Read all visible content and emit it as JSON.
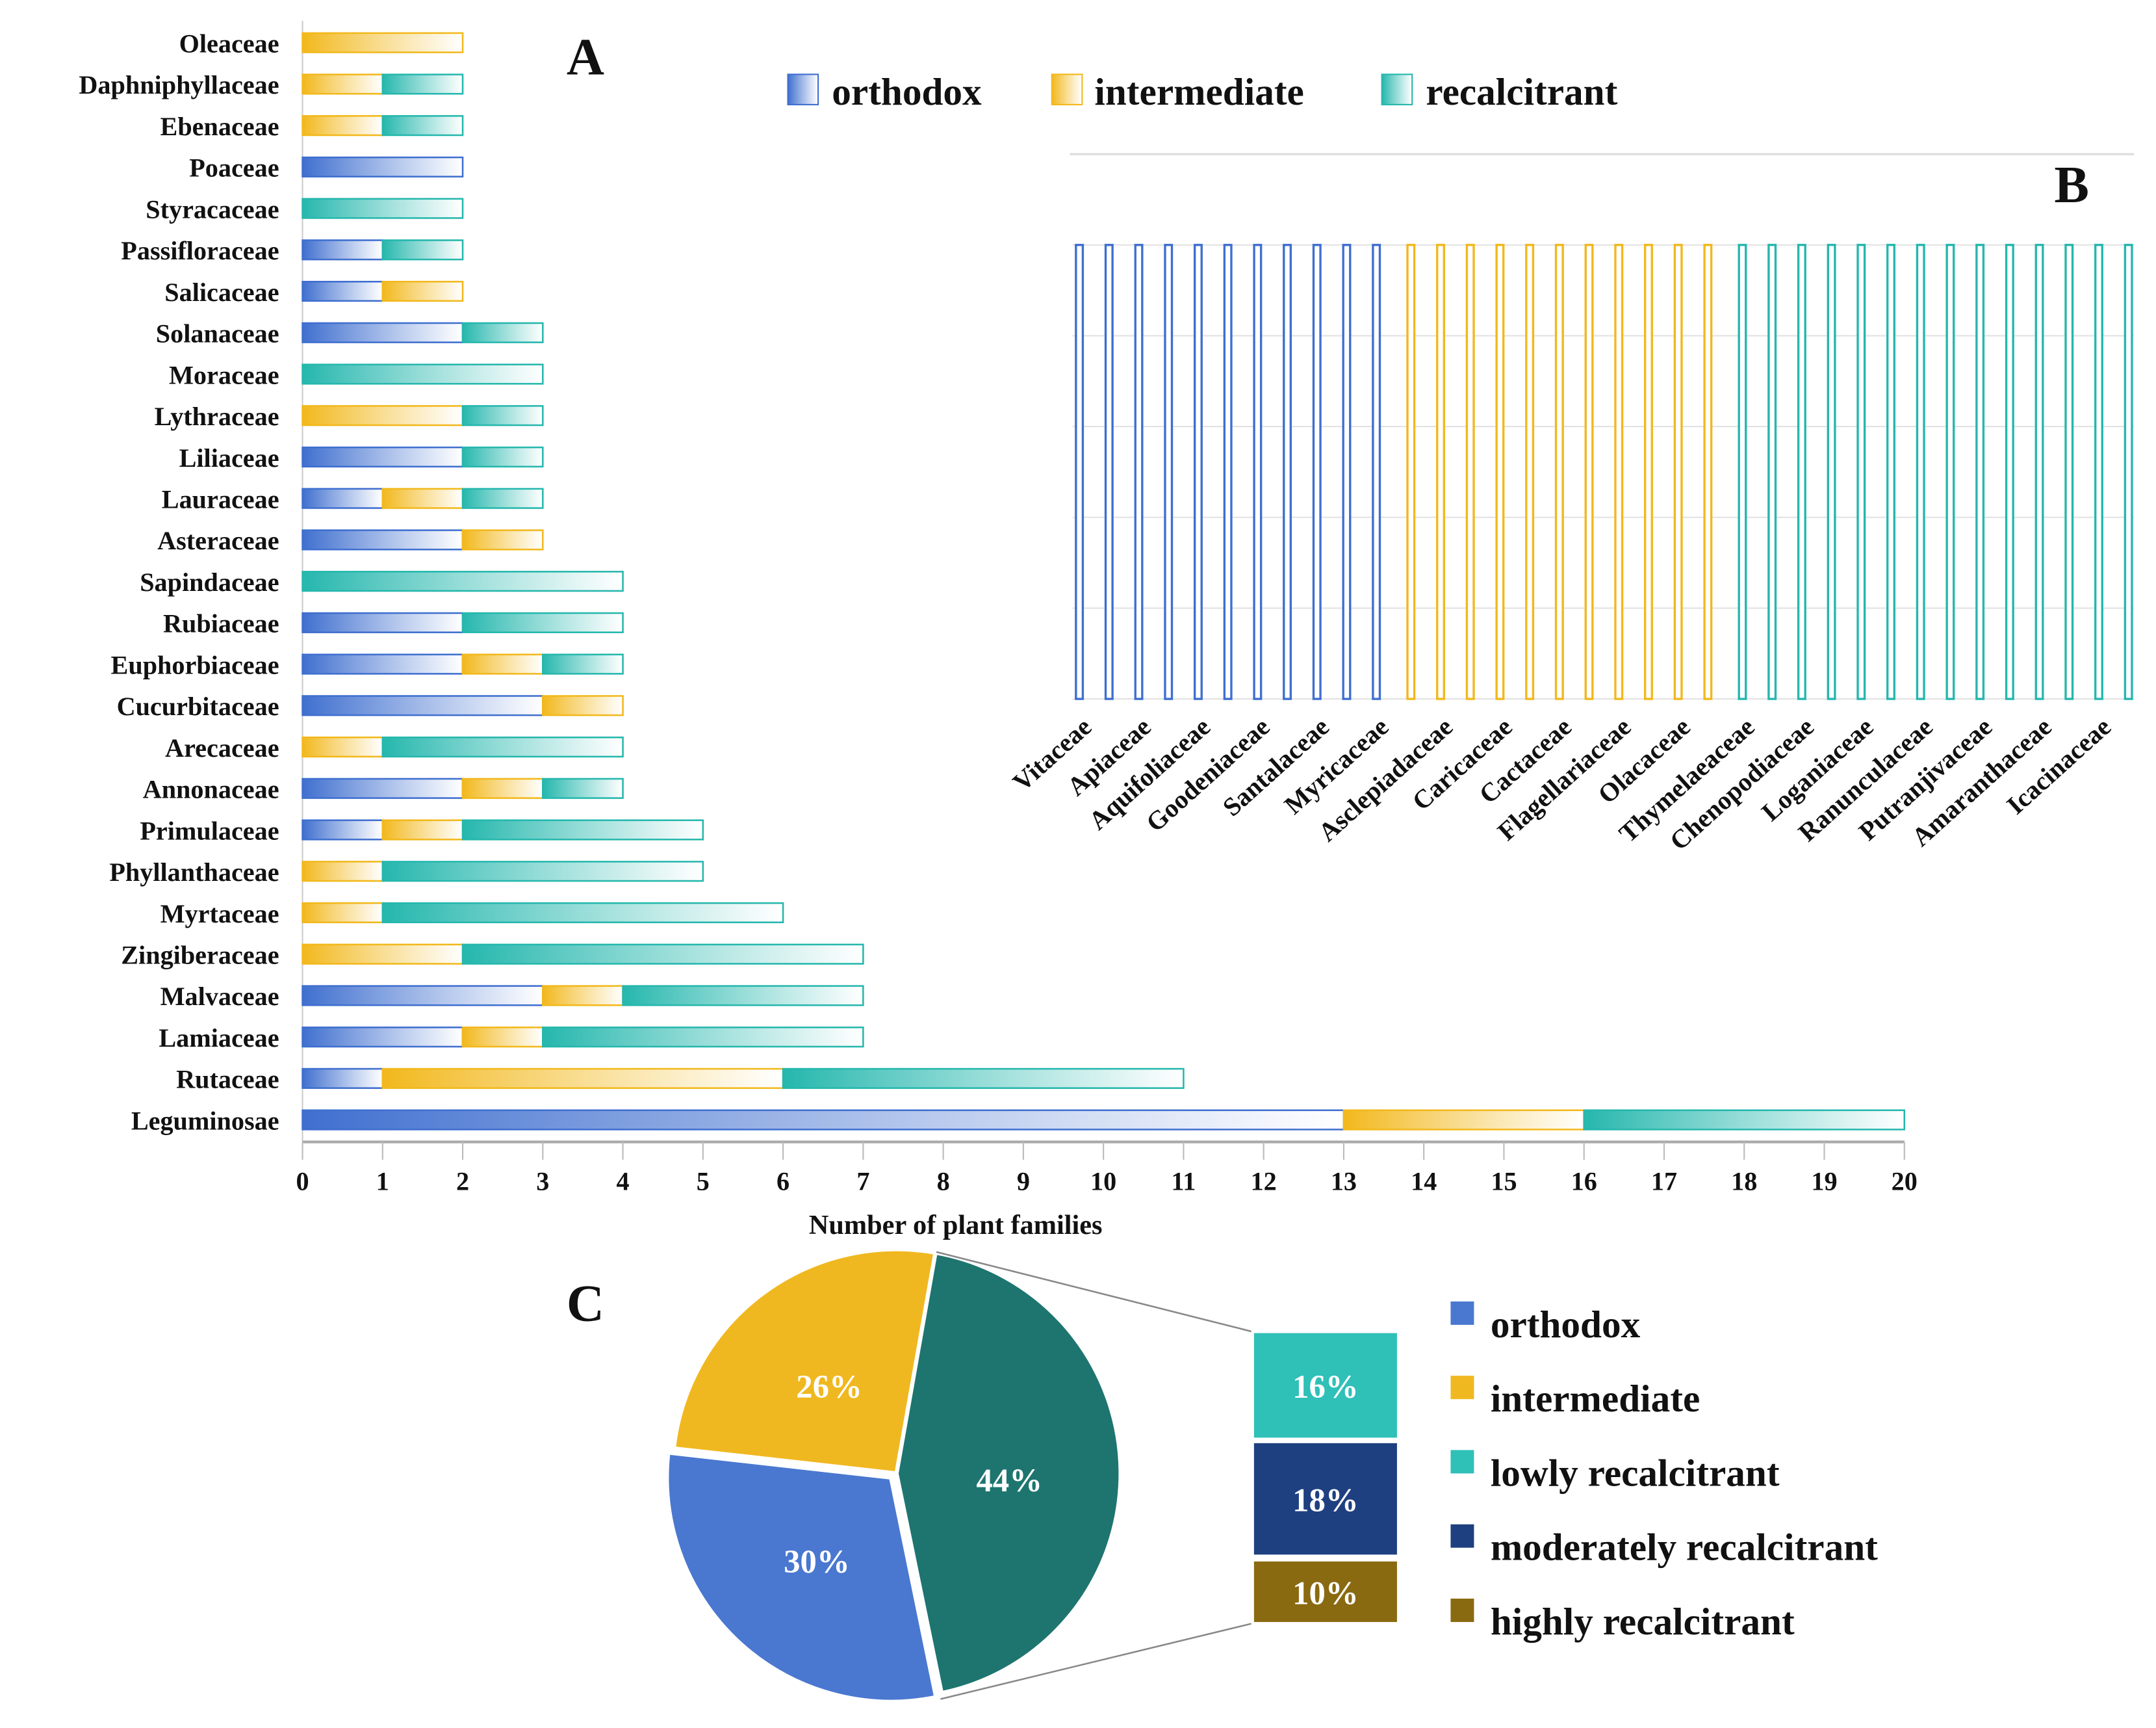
{
  "colors": {
    "orthodox": "#3f6fcf",
    "intermediate": "#f2b81c",
    "recalcitrant": "#25b7ad",
    "pie_orthodox": "#4a78d0",
    "pie_intermediate": "#f0b820",
    "pie_recalcitrant": "#1e756f",
    "lowly": "#2fc0b8",
    "moderately": "#1f4080",
    "highly": "#8a6a10"
  },
  "chart_data": [
    {
      "panel": "A",
      "type": "bar",
      "orientation": "horizontal",
      "stacked": true,
      "xlabel": "Number of plant families",
      "xlim": [
        0,
        20
      ],
      "xticks": [
        "0",
        "1",
        "2",
        "3",
        "4",
        "5",
        "6",
        "7",
        "8",
        "9",
        "10",
        "11",
        "12",
        "13",
        "14",
        "15",
        "16",
        "17",
        "18",
        "19",
        "20"
      ],
      "legend": [
        "orthodox",
        "intermediate",
        "recalcitrant"
      ],
      "legend_position": "top",
      "categories": [
        "Oleaceae",
        "Daphniphyllaceae",
        "Ebenaceae",
        "Poaceae",
        "Styracaceae",
        "Passifloraceae",
        "Salicaceae",
        "Solanaceae",
        "Moraceae",
        "Lythraceae",
        "Liliaceae",
        "Lauraceae",
        "Asteraceae",
        "Sapindaceae",
        "Rubiaceae",
        "Euphorbiaceae",
        "Cucurbitaceae",
        "Arecaceae",
        "Annonaceae",
        "Primulaceae",
        "Phyllanthaceae",
        "Myrtaceae",
        "Zingiberaceae",
        "Malvaceae",
        "Lamiaceae",
        "Rutaceae",
        "Leguminosae"
      ],
      "series": [
        {
          "name": "orthodox",
          "values": [
            0,
            0,
            0,
            2,
            0,
            1,
            1,
            2,
            0,
            0,
            2,
            1,
            2,
            0,
            2,
            2,
            3,
            0,
            2,
            1,
            0,
            0,
            0,
            3,
            2,
            1,
            13
          ]
        },
        {
          "name": "intermediate",
          "values": [
            2,
            1,
            1,
            0,
            0,
            0,
            1,
            0,
            0,
            2,
            0,
            1,
            1,
            0,
            0,
            1,
            1,
            1,
            1,
            1,
            1,
            1,
            2,
            1,
            1,
            5,
            3
          ]
        },
        {
          "name": "recalcitrant",
          "values": [
            0,
            1,
            1,
            0,
            2,
            1,
            0,
            1,
            3,
            1,
            1,
            1,
            0,
            4,
            2,
            1,
            0,
            3,
            1,
            3,
            4,
            5,
            5,
            3,
            4,
            5,
            4
          ]
        }
      ]
    },
    {
      "panel": "B",
      "type": "bar",
      "orientation": "vertical",
      "group_counts": {
        "orthodox": 11,
        "intermediate": 11,
        "recalcitrant": 14
      },
      "value_each": 1,
      "tick_labels": [
        "Vitaceae",
        "Apiaceae",
        "Aquifoliaceae",
        "Goodeniaceae",
        "Santalaceae",
        "Myricaceae",
        "Asclepiadaceae",
        "Caricaceae",
        "Cactaceae",
        "Flagellariaceae",
        "Olacaceae",
        "Thymelaeaceae",
        "Chenopodiaceae",
        "Loganiaceae",
        "Ranunculaceae",
        "Putranjivaceae",
        "Amaranthaceae",
        "Icacinaceae"
      ],
      "grid": true
    },
    {
      "panel": "C",
      "type": "pie",
      "slices": [
        {
          "name": "recalcitrant",
          "value": 44,
          "label": "44%"
        },
        {
          "name": "orthodox",
          "value": 30,
          "label": "30%"
        },
        {
          "name": "intermediate",
          "value": 26,
          "label": "26%"
        }
      ],
      "breakdown": [
        {
          "name": "lowly recalcitrant",
          "value": 16,
          "label": "16%"
        },
        {
          "name": "moderately recalcitrant",
          "value": 18,
          "label": "18%"
        },
        {
          "name": "highly recalcitrant",
          "value": 10,
          "label": "10%"
        }
      ],
      "legend": [
        "orthodox",
        "intermediate",
        "lowly recalcitrant",
        "moderately recalcitrant",
        "highly recalcitrant"
      ],
      "legend_position": "right"
    }
  ],
  "panels": {
    "a": "A",
    "b": "B",
    "c": "C"
  }
}
